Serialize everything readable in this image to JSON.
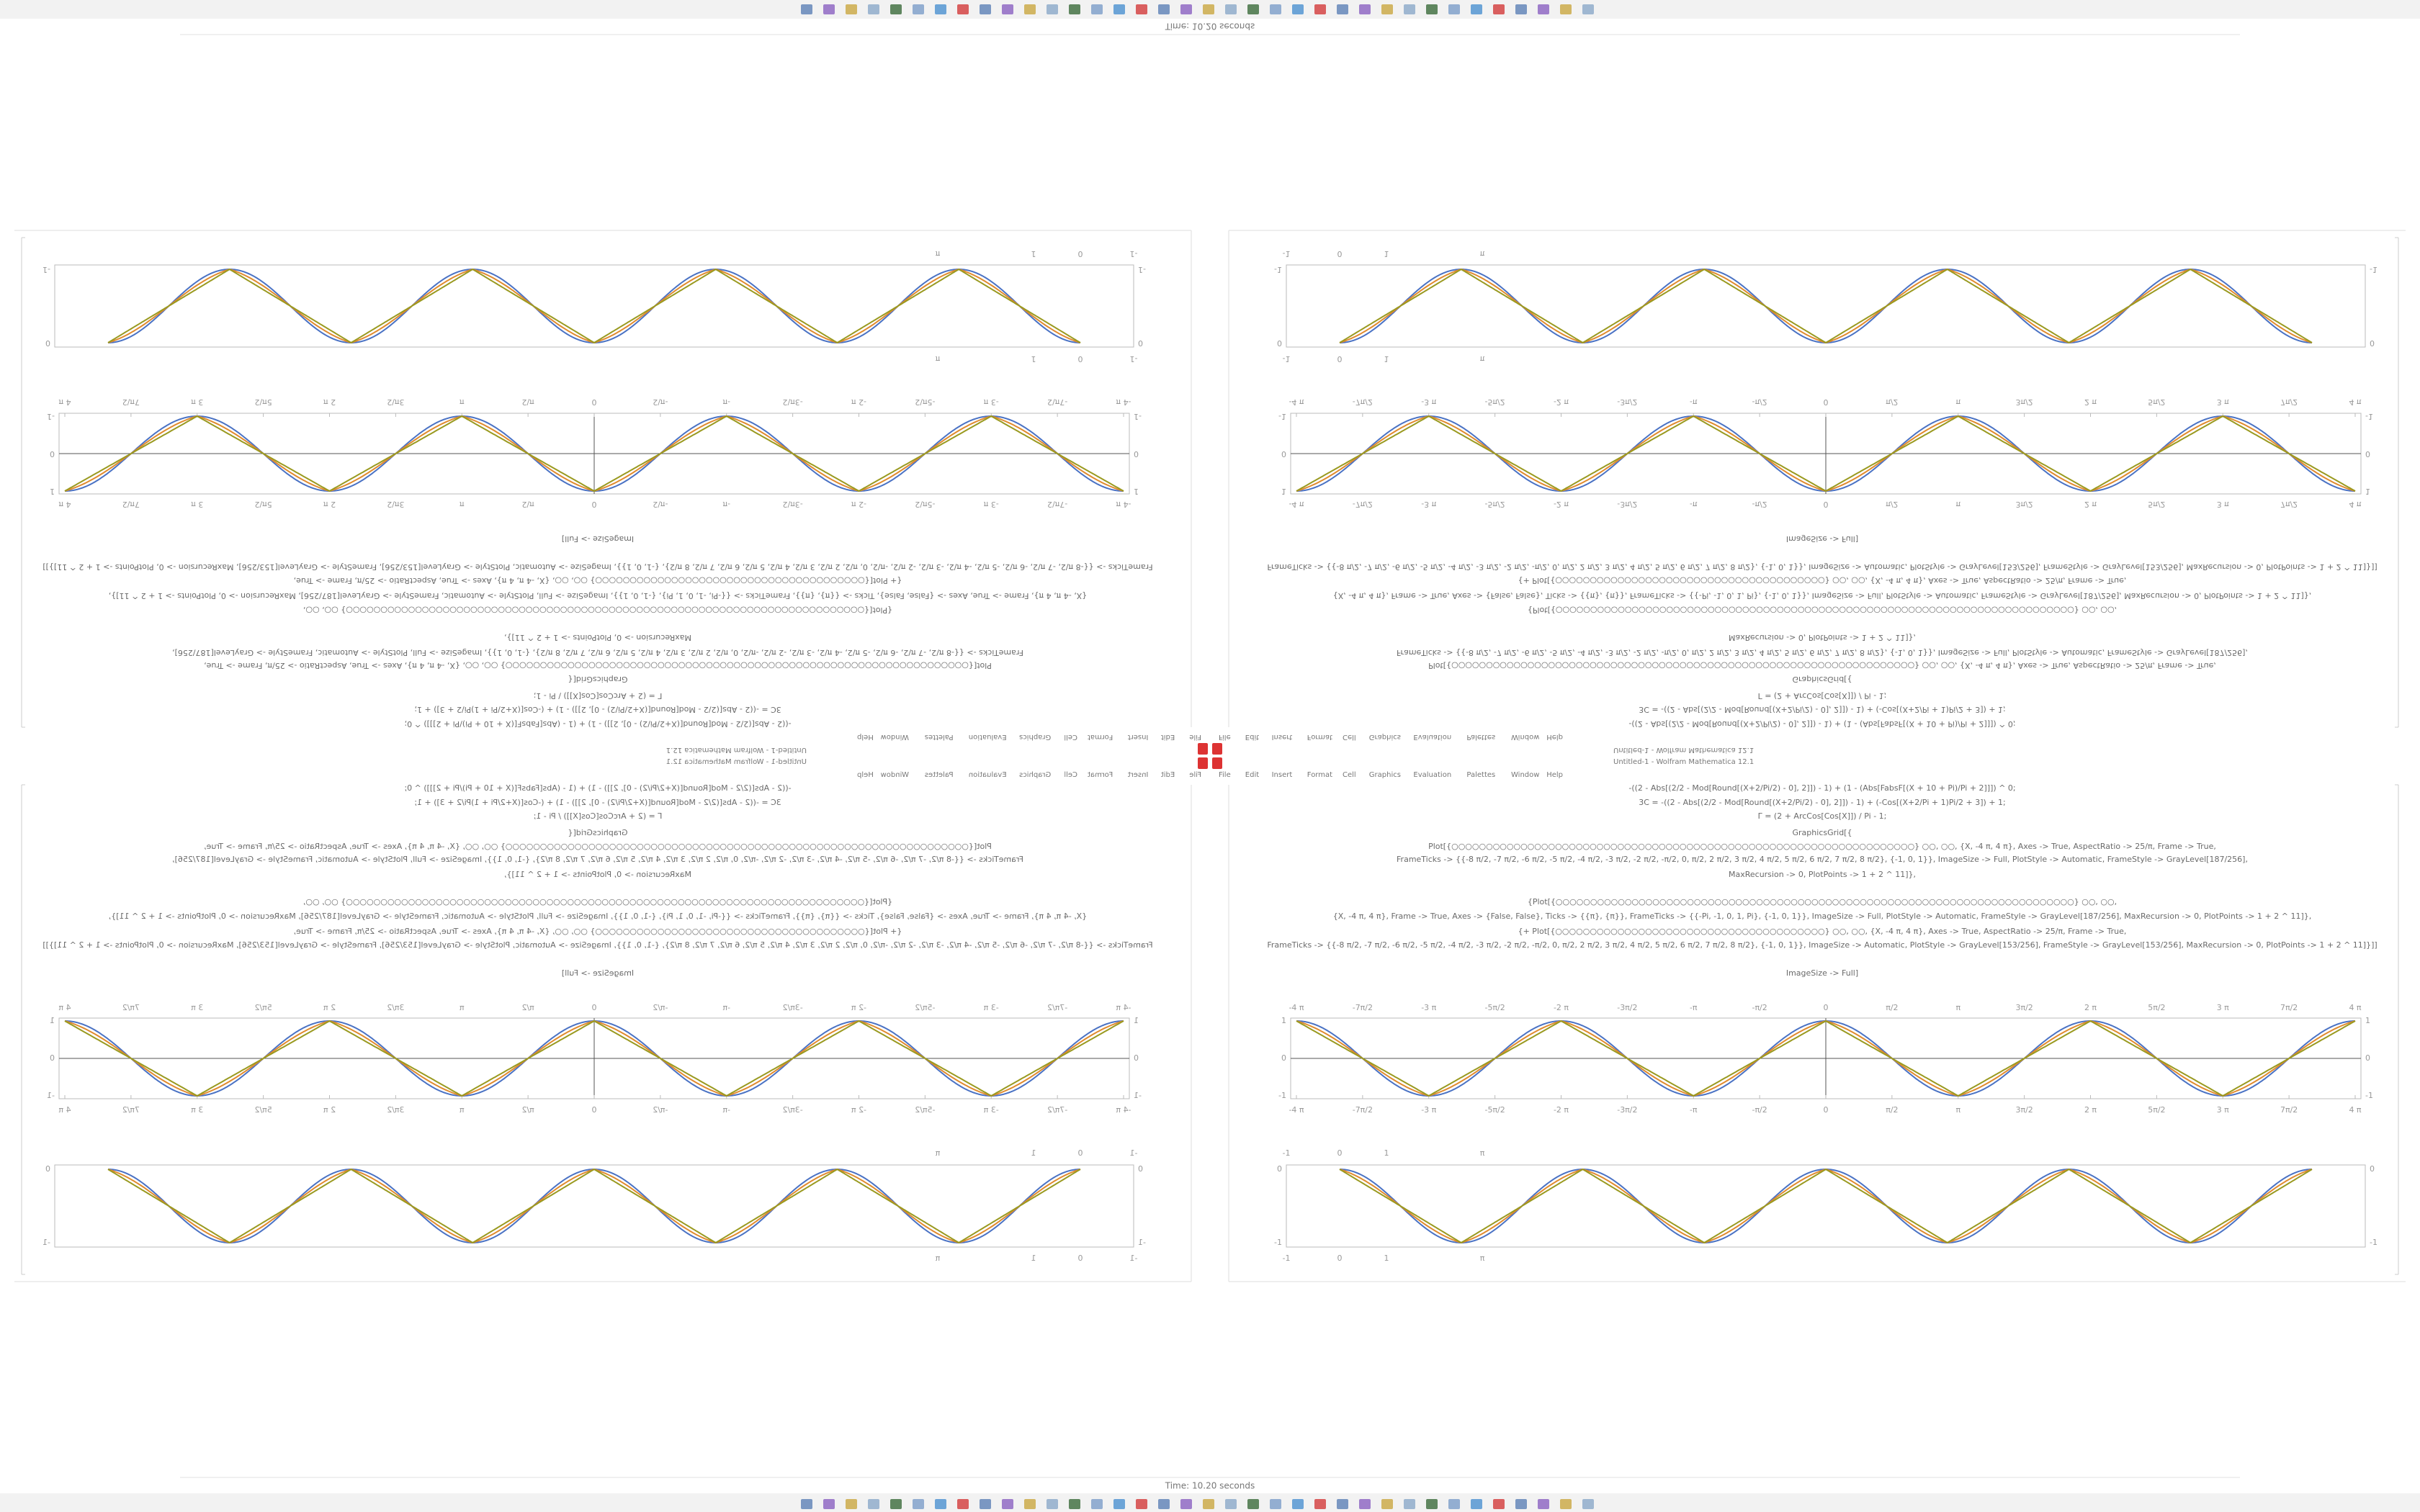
{
  "status": "Time: 10.20 seconds",
  "window_title": "Untitled-1 - Wolfram Mathematica 12.1",
  "menu": [
    "File",
    "Edit",
    "Insert",
    "Format",
    "Cell",
    "Graphics",
    "Evaluation",
    "Palettes",
    "Window",
    "Help"
  ],
  "code_lines": [
    "-((2 - Abs[(2/2 - Mod[Round[(X+2/Pi/2) - 0], 2]]) - 1) + (1 - (Abs[FabsF[(X + 10 + Pi)/Pi + 2]]]) ^ 0;",
    "3C = -((2 - Abs[(2/2 - Mod[Round[(X+2/Pi/2) - 0], 2]]) - 1) + (-Cos[(X+2/Pi + 1)Pi/2 + 3]) + 1;",
    "Γ = (2 + ArcCos[Cos[X]]) / Pi - 1;",
    "GraphicsGrid[{",
    "Plot[{○○○○○○○○○○○○○○○○○○○○○○○○○○○○○○○○○○○○○○○○○○○○○○○○○○○○○○○○○○○○○○○○○○○}    ○○, ○○, {X, -4 π, 4 π}, Axes -> True, AspectRatio -> 25/π, Frame -> True,",
    "FrameTicks -> {{-8 π/2, -7 π/2, -6 π/2, -5 π/2, -4 π/2, -3 π/2, -2 π/2, -π/2, 0, π/2, 2 π/2, 3 π/2, 4 π/2, 5 π/2, 6 π/2, 7 π/2, 8 π/2}, {-1, 0, 1}}, ImageSize -> Full, PlotStyle -> Automatic, FrameStyle -> GrayLevel[187/256],",
    "MaxRecursion -> 0, PlotPoints -> 1 + 2 ^ 11]},",
    "{Plot[{○○○○○○○○○○○○○○○○○○○○○○○○○○○○○○○○○○○○○○○○○○○○○○○○○○○○○○○○○○○○○○○○○○○○○○○○○○○}    ○○, ○○,",
    "{X, -4 π, 4 π}, Frame -> True, Axes -> {False, False}, Ticks -> {{π}, {π}}, FrameTicks -> {{-Pi, -1, 0, 1, Pi}, {-1, 0, 1}}, ImageSize -> Full, PlotStyle -> Automatic, FrameStyle -> GrayLevel[187/256], MaxRecursion -> 0, PlotPoints -> 1 + 2 ^ 11]},",
    "{+ Plot[{○○○○○○○○○○○○○○○○○○○○○○○○○○○○○○○○○○○○○○○}    ○○, ○○, {X, -4 π, 4 π}, Axes -> True, AspectRatio -> 25/π, Frame -> True,",
    "FrameTicks -> {{-8 π/2, -7 π/2, -6 π/2, -5 π/2, -4 π/2, -3 π/2, -2 π/2, -π/2, 0, π/2, 2 π/2, 3 π/2, 4 π/2, 5 π/2, 6 π/2, 7 π/2, 8 π/2}, {-1, 0, 1}}, ImageSize -> Automatic, PlotStyle -> GrayLevel[153/256], FrameStyle -> GrayLevel[153/256], MaxRecursion -> 0, PlotPoints -> 1 + 2 ^ 11]}]]"
  ],
  "output_label": "ImageSize -> Full]",
  "plot1": {
    "xticks": [
      "-4 π",
      "-7π/2",
      "-3 π",
      "-5π/2",
      "-2 π",
      "-3π/2",
      "-π",
      "-π/2",
      "0",
      "π/2",
      "π",
      "3π/2",
      "2 π",
      "5π/2",
      "3 π",
      "7π/2",
      "4 π"
    ],
    "yticks": [
      "-1",
      "0",
      "1"
    ]
  },
  "plot2": {
    "top_ticks": [
      "-1",
      "0",
      "1",
      "π"
    ],
    "yticks": [
      "0",
      "-1"
    ]
  }
}
